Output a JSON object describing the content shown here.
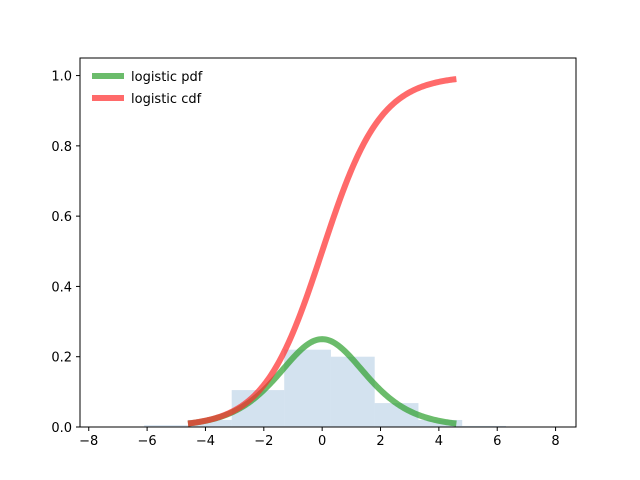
{
  "chart_data": {
    "type": "line",
    "title": "",
    "xlabel": "",
    "ylabel": "",
    "xlim": [
      -8.3,
      8.7
    ],
    "ylim": [
      0.0,
      1.05
    ],
    "grid": false,
    "legend_position": "top-left",
    "xticks": [
      -8,
      -6,
      -4,
      -2,
      0,
      2,
      4,
      6,
      8
    ],
    "xtick_labels": [
      "−8",
      "−6",
      "−4",
      "−2",
      "0",
      "2",
      "4",
      "6",
      "8"
    ],
    "yticks": [
      0.0,
      0.2,
      0.4,
      0.6,
      0.8,
      1.0
    ],
    "ytick_labels": [
      "0.0",
      "0.2",
      "0.4",
      "0.6",
      "0.8",
      "1.0"
    ],
    "histogram": {
      "color": "#a8c6df",
      "opacity": 0.5,
      "bins": [
        {
          "x0": -6.1,
          "x1": -4.6,
          "height": 0.005
        },
        {
          "x0": -4.6,
          "x1": -3.1,
          "height": 0.02
        },
        {
          "x0": -3.1,
          "x1": -1.3,
          "height": 0.105
        },
        {
          "x0": -1.3,
          "x1": 0.3,
          "height": 0.22
        },
        {
          "x0": 0.3,
          "x1": 1.8,
          "height": 0.2
        },
        {
          "x0": 1.8,
          "x1": 3.3,
          "height": 0.068
        },
        {
          "x0": 3.3,
          "x1": 4.8,
          "height": 0.02
        },
        {
          "x0": 4.8,
          "x1": 6.3,
          "height": 0.003
        }
      ]
    },
    "series": [
      {
        "name": "logistic pdf",
        "function": "logistic_pdf",
        "x_range": [
          -4.6,
          4.6
        ],
        "color": "#2ca02c",
        "opacity": 0.7
      },
      {
        "name": "logistic cdf",
        "function": "logistic_cdf",
        "x_range": [
          -4.6,
          4.6
        ],
        "color": "#ff2b2b",
        "opacity": 0.7
      }
    ]
  }
}
